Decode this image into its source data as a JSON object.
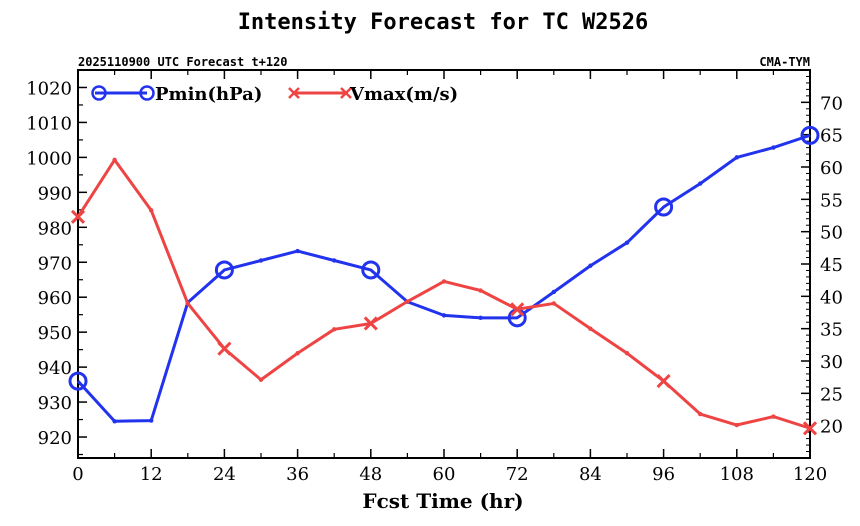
{
  "chart_data": {
    "type": "line",
    "title": "Intensity Forecast for TC W2526",
    "subtitle_left": "2025110900 UTC Forecast t+120",
    "subtitle_right": "CMA-TYM",
    "xlabel": "Fcst Time (hr)",
    "x": [
      0,
      6,
      12,
      18,
      24,
      30,
      36,
      42,
      48,
      54,
      60,
      66,
      72,
      78,
      84,
      90,
      96,
      102,
      108,
      114,
      120
    ],
    "xlim": [
      0,
      120
    ],
    "xticks": [
      "0",
      "12",
      "24",
      "36",
      "48",
      "60",
      "72",
      "84",
      "96",
      "108",
      "120"
    ],
    "left_axis": {
      "ylim": [
        914,
        1025
      ],
      "ticks": [
        "920",
        "930",
        "940",
        "950",
        "960",
        "970",
        "980",
        "990",
        "1000",
        "1010",
        "1020"
      ]
    },
    "right_axis": {
      "ylim": [
        15,
        75
      ],
      "ticks": [
        "20",
        "25",
        "30",
        "35",
        "40",
        "45",
        "50",
        "55",
        "60",
        "65",
        "70"
      ]
    },
    "series": [
      {
        "name": "Pmin(hPa)",
        "axis": "left",
        "color": "#2233ee",
        "marker": "circle",
        "marker_every": 4,
        "values": [
          936,
          924.5,
          924.7,
          958.5,
          967.8,
          970.5,
          973.2,
          970.5,
          967.8,
          958.7,
          954.8,
          954.1,
          954.1,
          961.5,
          969,
          975.6,
          985.8,
          992.5,
          1000,
          1002.8,
          1006.3
        ]
      },
      {
        "name": "Vmax(m/s)",
        "axis": "right",
        "color": "#ee4444",
        "marker": "x",
        "marker_every": 4,
        "values": [
          52.3,
          61.1,
          53.3,
          38.9,
          31.9,
          27.1,
          31.2,
          34.9,
          35.8,
          39.2,
          42.3,
          40.9,
          38.0,
          38.9,
          35.0,
          31.2,
          26.9,
          21.8,
          20.1,
          21.4,
          19.6
        ]
      }
    ]
  }
}
